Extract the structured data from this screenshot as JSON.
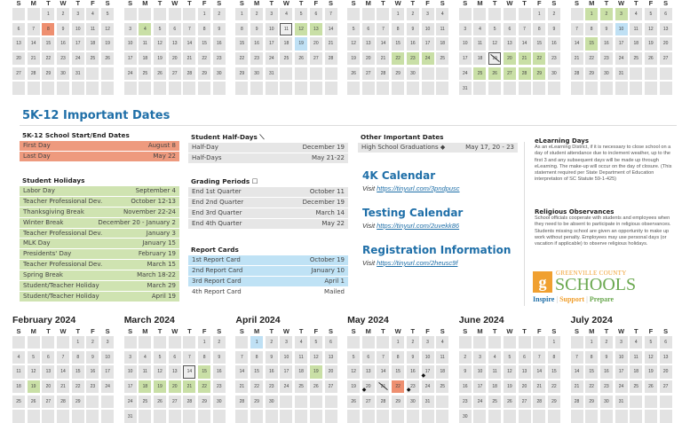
{
  "weekday_labels": [
    "S",
    "M",
    "T",
    "W",
    "T",
    "F",
    "S"
  ],
  "top_calendars": [
    {
      "title": "",
      "first": 2,
      "days": 31,
      "marks": {
        "8": "o"
      }
    },
    {
      "title": "",
      "first": 5,
      "days": 30,
      "marks": {
        "4": "g"
      }
    },
    {
      "title": "",
      "first": 0,
      "days": 31,
      "marks": {
        "11": "q",
        "12": "g",
        "13": "g",
        "19": "b"
      }
    },
    {
      "title": "",
      "first": 3,
      "days": 30,
      "marks": {
        "22": "g",
        "23": "g",
        "24": "g"
      }
    },
    {
      "title": "",
      "first": 5,
      "days": 31,
      "marks": {
        "19": "q h",
        "20": "g",
        "21": "g",
        "22": "g",
        "25": "g",
        "26": "g",
        "27": "g",
        "28": "g",
        "29": "g"
      }
    },
    {
      "title": "",
      "first": 1,
      "days": 31,
      "marks": {
        "1": "g",
        "2": "g",
        "3": "g",
        "10": "b",
        "15": "g"
      }
    }
  ],
  "bottom_calendars": [
    {
      "title": "February 2024",
      "first": 4,
      "days": 29,
      "marks": {
        "19": "g"
      }
    },
    {
      "title": "March 2024",
      "first": 5,
      "days": 31,
      "marks": {
        "14": "q",
        "15": "g",
        "18": "g",
        "19": "g",
        "20": "g",
        "21": "g",
        "22": "g"
      }
    },
    {
      "title": "April 2024",
      "first": 1,
      "days": 30,
      "marks": {
        "1": "b",
        "19": "g"
      }
    },
    {
      "title": "May 2024",
      "first": 3,
      "days": 31,
      "marks": {
        "17": "d",
        "20": "d",
        "21": "h",
        "22": "o",
        "23": "d"
      }
    },
    {
      "title": "June 2024",
      "first": 6,
      "days": 30,
      "marks": {}
    },
    {
      "title": "July 2024",
      "first": 1,
      "days": 31,
      "marks": {}
    }
  ],
  "important": {
    "title": "5K-12 Important Dates",
    "start_end": {
      "title": "5K-12 School Start/End Dates",
      "rows": [
        [
          "First Day",
          "August 8"
        ],
        [
          "Last Day",
          "May 22"
        ]
      ]
    },
    "holidays": {
      "title": "Student Holidays",
      "rows": [
        [
          "Labor Day",
          "September 4"
        ],
        [
          "Teacher Professional Dev.",
          "October 12-13"
        ],
        [
          "Thanksgiving Break",
          "November 22-24"
        ],
        [
          "Winter Break",
          "December 20 - January 2"
        ],
        [
          "Teacher Professional Dev.",
          "January 3"
        ],
        [
          "MLK Day",
          "January 15"
        ],
        [
          "Presidents' Day",
          "February 19"
        ],
        [
          "Teacher Professional Dev.",
          "March 15"
        ],
        [
          "Spring Break",
          "March 18-22"
        ],
        [
          "Student/Teacher Holiday",
          "March 29"
        ],
        [
          "Student/Teacher Holiday",
          "April 19"
        ]
      ]
    },
    "half_days": {
      "title": "Student Half-Days ⟍",
      "rows": [
        [
          "Half-Day",
          "December 19"
        ],
        [
          "Half-Days",
          "May 21-22"
        ]
      ]
    },
    "grading": {
      "title": "Grading Periods ☐",
      "rows": [
        [
          "End 1st Quarter",
          "October 11"
        ],
        [
          "End 2nd Quarter",
          "December 19"
        ],
        [
          "End 3rd Quarter",
          "March 14"
        ],
        [
          "End 4th Quarter",
          "May 22"
        ]
      ]
    },
    "report_cards": {
      "title": "Report Cards",
      "rows": [
        [
          "1st Report Card",
          "October 19"
        ],
        [
          "2nd Report Card",
          "January 10"
        ],
        [
          "3rd Report Card",
          "April 1"
        ],
        [
          "4th Report Card",
          "Mailed"
        ]
      ]
    },
    "other": {
      "title": "Other Important Dates",
      "rows": [
        [
          "High School Graduations ◆",
          "May 17, 20 - 23"
        ]
      ]
    }
  },
  "links": [
    {
      "title": "4K Calendar",
      "visit": "Visit",
      "url": "https://tinyurl.com/3pndpusc"
    },
    {
      "title": "Testing Calendar",
      "visit": "Visit",
      "url": "https://tinyurl.com/2uvekk86"
    },
    {
      "title": "Registration Information",
      "visit": "Visit",
      "url": "https://tinyurl.com/2heusc9f"
    }
  ],
  "elearning": {
    "title": "eLearning Days",
    "body": "As an eLearning District, if it is necessary to close school on a day of student attendance due to inclement weather, up to the first 3 and any subsequent days will be made up through eLearning. The make-up will occur on the day of closure. (This statement required per State Department of Education interpretaton of SC Statute 59-1-425)"
  },
  "religious": {
    "title": "Religious Observances",
    "body": "School officials cooperate with students and employees when they need to be absent to participate in religious observances. Students missing school are given an opportunity to make up work without penalty. Employees may use personal days (or vacation if applicable) to observe religious holidays."
  },
  "logo": {
    "line1": "GREENVILLE COUNTY",
    "line2": "SCHOOLS",
    "inspire": "Inspire",
    "support": "Support",
    "prepare": "Prepare",
    "sep": "|"
  },
  "colors": {
    "orange": "#ee8f70",
    "green": "#c9dfa6",
    "blue": "#bfe0f4",
    "brand_blue": "#1f6fa8"
  }
}
